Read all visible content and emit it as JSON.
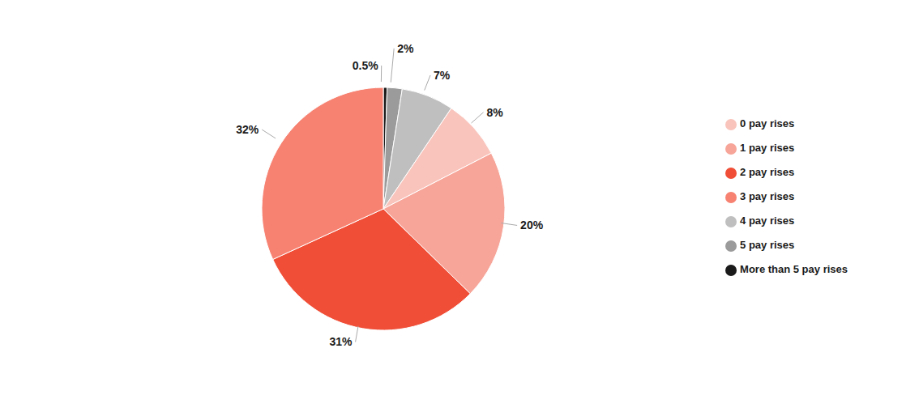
{
  "chart_data": {
    "type": "pie",
    "categories": [
      "More than 5 pay rises",
      "5 pay rises",
      "4 pay rises",
      "0 pay rises",
      "1 pay rises",
      "2 pay rises",
      "3 pay rises"
    ],
    "values": [
      0.5,
      2,
      7,
      8,
      20,
      31,
      32
    ],
    "value_labels": [
      "0.5%",
      "2%",
      "7%",
      "8%",
      "20%",
      "31%",
      "32%"
    ],
    "colors": [
      "#1a1a1a",
      "#9b9b9b",
      "#c0bfbf",
      "#f9c4bc",
      "#f7a599",
      "#f04e37",
      "#f78272"
    ],
    "data_labels": true,
    "legend": "right"
  }
}
